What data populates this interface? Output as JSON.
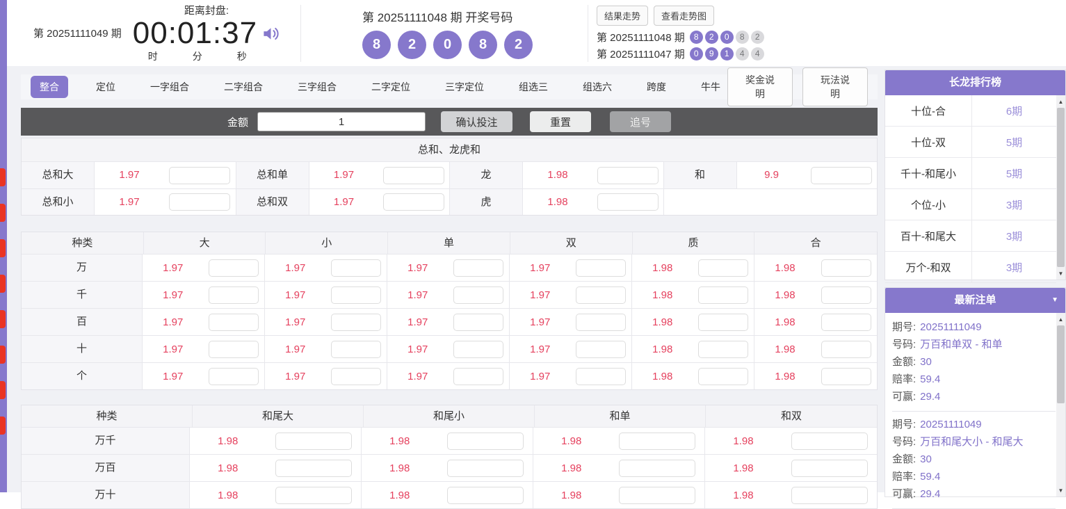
{
  "header": {
    "current_issue": "第 20251111049 期",
    "countdown_label": "距离封盘:",
    "countdown": "00:01:37",
    "units": [
      "时",
      "分",
      "秒"
    ],
    "draw_title": "第 20251111048 期  开奖号码",
    "draw_numbers": [
      "8",
      "2",
      "0",
      "8",
      "2"
    ],
    "result_trend_btn": "结果走势",
    "view_trend_btn": "查看走势图",
    "history": [
      {
        "issue": "第 20251111048 期",
        "purple": [
          "8",
          "2",
          "0"
        ],
        "gray": [
          "8",
          "2"
        ]
      },
      {
        "issue": "第 20251111047 期",
        "purple": [
          "0",
          "9",
          "1"
        ],
        "gray": [
          "4",
          "4"
        ]
      }
    ]
  },
  "tabs": [
    "整合",
    "定位",
    "一字组合",
    "二字组合",
    "三字组合",
    "二字定位",
    "三字定位",
    "组选三",
    "组选六",
    "跨度",
    "牛牛"
  ],
  "active_tab": "整合",
  "help_buttons": [
    "奖金说明",
    "玩法说明"
  ],
  "toolbar": {
    "amount_label": "金额",
    "amount_value": "1",
    "confirm": "确认投注",
    "reset": "重置",
    "chase": "追号"
  },
  "section1": {
    "title": "总和、龙虎和",
    "rows": [
      [
        {
          "label": "总和大",
          "odds": "1.97"
        },
        {
          "label": "总和单",
          "odds": "1.97"
        },
        {
          "label": "龙",
          "odds": "1.98"
        },
        {
          "label": "和",
          "odds": "9.9"
        }
      ],
      [
        {
          "label": "总和小",
          "odds": "1.97"
        },
        {
          "label": "总和双",
          "odds": "1.97"
        },
        {
          "label": "虎",
          "odds": "1.98"
        },
        null
      ]
    ]
  },
  "section2": {
    "headers": [
      "种类",
      "大",
      "小",
      "单",
      "双",
      "质",
      "合"
    ],
    "rows": [
      {
        "label": "万",
        "odds": [
          "1.97",
          "1.97",
          "1.97",
          "1.97",
          "1.98",
          "1.98"
        ]
      },
      {
        "label": "千",
        "odds": [
          "1.97",
          "1.97",
          "1.97",
          "1.97",
          "1.98",
          "1.98"
        ]
      },
      {
        "label": "百",
        "odds": [
          "1.97",
          "1.97",
          "1.97",
          "1.97",
          "1.98",
          "1.98"
        ]
      },
      {
        "label": "十",
        "odds": [
          "1.97",
          "1.97",
          "1.97",
          "1.97",
          "1.98",
          "1.98"
        ]
      },
      {
        "label": "个",
        "odds": [
          "1.97",
          "1.97",
          "1.97",
          "1.97",
          "1.98",
          "1.98"
        ]
      }
    ]
  },
  "section3": {
    "headers": [
      "种类",
      "和尾大",
      "和尾小",
      "和单",
      "和双"
    ],
    "rows": [
      {
        "label": "万千",
        "odds": [
          "1.98",
          "1.98",
          "1.98",
          "1.98"
        ]
      },
      {
        "label": "万百",
        "odds": [
          "1.98",
          "1.98",
          "1.98",
          "1.98"
        ]
      },
      {
        "label": "万十",
        "odds": [
          "1.98",
          "1.98",
          "1.98",
          "1.98"
        ]
      }
    ]
  },
  "sidebar": {
    "dragon_title": "长龙排行榜",
    "dragon_rows": [
      {
        "name": "十位-合",
        "count": "6期"
      },
      {
        "name": "十位-双",
        "count": "5期"
      },
      {
        "name": "千十-和尾小",
        "count": "5期"
      },
      {
        "name": "个位-小",
        "count": "3期"
      },
      {
        "name": "百十-和尾大",
        "count": "3期"
      },
      {
        "name": "万个-和双",
        "count": "3期"
      }
    ],
    "orders_title": "最新注单",
    "order_labels": {
      "issue": "期号:",
      "number": "号码:",
      "amount": "金额:",
      "odds": "赔率:",
      "win": "可赢:"
    },
    "orders": [
      {
        "issue": "20251111049",
        "number": "万百和单双 - 和单",
        "amount": "30",
        "odds": "59.4",
        "win": "29.4"
      },
      {
        "issue": "20251111049",
        "number": "万百和尾大小 - 和尾大",
        "amount": "30",
        "odds": "59.4",
        "win": "29.4"
      }
    ]
  },
  "colors": {
    "accent_purple": "#8678cc",
    "odds_pink": "#e5415e",
    "toolbar_dark": "#58585a",
    "edge_red": "#ea3423"
  }
}
